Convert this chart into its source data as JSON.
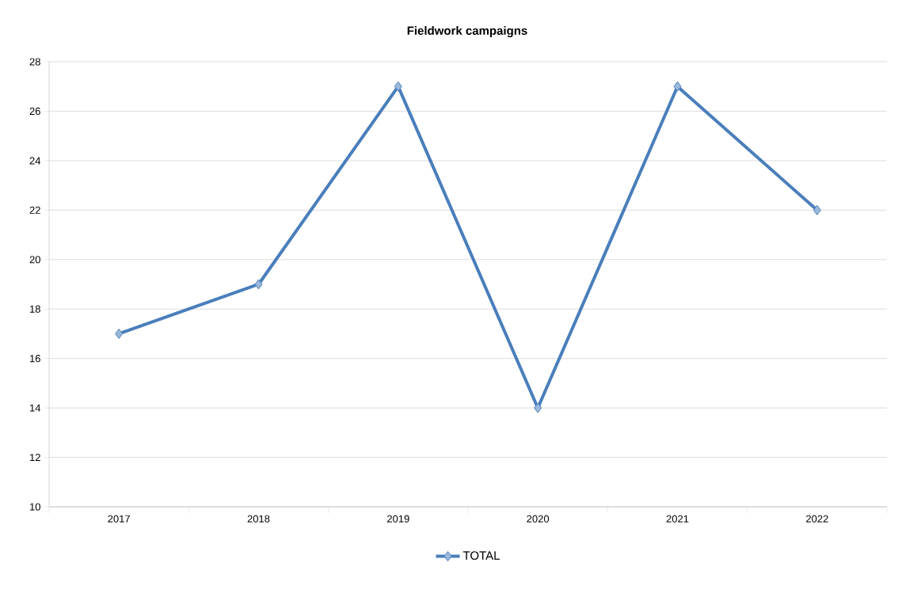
{
  "chart_data": {
    "type": "line",
    "title": "Fieldwork campaigns",
    "categories": [
      "2017",
      "2018",
      "2019",
      "2020",
      "2021",
      "2022"
    ],
    "series": [
      {
        "name": "TOTAL",
        "color": "#4a7ebb",
        "values": [
          17,
          19,
          27,
          14,
          27,
          22
        ]
      }
    ],
    "ylim": [
      10,
      28
    ],
    "yticks": [
      10,
      12,
      14,
      16,
      18,
      20,
      22,
      24,
      26,
      28
    ],
    "grid": "y",
    "legend": "bottom",
    "marker": "diamond",
    "line_style": "solid"
  }
}
